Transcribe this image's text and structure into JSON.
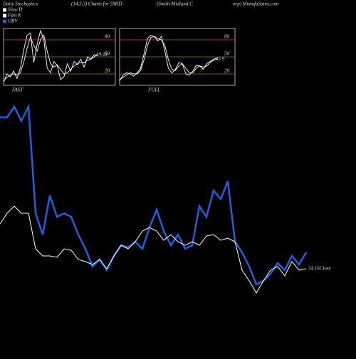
{
  "header": {
    "title_parts": [
      "Daily Stochastics",
      "(14,3,3) Charts for SMID",
      "(Smith-Midland C",
      "orp) MunafaSutra.com"
    ],
    "legend": [
      {
        "name": "Slow D",
        "color": "#ffffff"
      },
      {
        "name": "Fast K",
        "color": "#ffffff"
      },
      {
        "name": "OBV",
        "color": "#1f5fe0"
      }
    ]
  },
  "chart_data": [
    {
      "type": "line",
      "label": "FAST",
      "ylim": [
        0,
        100
      ],
      "yticks": [
        20,
        50,
        80
      ],
      "last_label": "49.49",
      "series": [
        {
          "name": "Fast K",
          "color": "#ffffff",
          "values": [
            5,
            20,
            15,
            25,
            12,
            30,
            62,
            88,
            92,
            40,
            72,
            96,
            80,
            30,
            22,
            42,
            35,
            10,
            15,
            38,
            25,
            42,
            36,
            46,
            32,
            50,
            46,
            54,
            52
          ]
        },
        {
          "name": "Slow D",
          "color": "#ffffff",
          "values": [
            8,
            14,
            18,
            20,
            18,
            22,
            40,
            65,
            85,
            70,
            60,
            80,
            88,
            60,
            38,
            32,
            36,
            28,
            20,
            22,
            28,
            34,
            38,
            40,
            40,
            44,
            46,
            50,
            54
          ]
        }
      ]
    },
    {
      "type": "line",
      "label": "FULL",
      "ylim": [
        0,
        100
      ],
      "yticks": [
        20,
        50,
        80
      ],
      "last_label": "45.9",
      "series": [
        {
          "name": "Fast K",
          "color": "#ffffff",
          "values": [
            8,
            18,
            22,
            20,
            16,
            22,
            30,
            55,
            82,
            88,
            85,
            78,
            86,
            60,
            30,
            22,
            28,
            40,
            38,
            20,
            18,
            25,
            35,
            34,
            28,
            38,
            42,
            46,
            48
          ]
        },
        {
          "name": "Slow D",
          "color": "#ffffff",
          "values": [
            10,
            14,
            18,
            22,
            20,
            20,
            26,
            45,
            70,
            84,
            86,
            82,
            80,
            70,
            45,
            28,
            26,
            34,
            38,
            30,
            22,
            22,
            30,
            34,
            32,
            34,
            40,
            44,
            46
          ]
        }
      ]
    },
    {
      "type": "line",
      "ylim": [
        0,
        280
      ],
      "close_label": "34.16Close",
      "series": [
        {
          "name": "OBV",
          "color": "#1f5fe0",
          "values": [
            255,
            255,
            270,
            250,
            270,
            120,
            90,
            145,
            115,
            120,
            115,
            90,
            70,
            45,
            55,
            40,
            60,
            75,
            72,
            80,
            70,
            100,
            125,
            95,
            75,
            90,
            70,
            75,
            130,
            115,
            152,
            140,
            165,
            80,
            65,
            45,
            20,
            25,
            35,
            50,
            40,
            60,
            48,
            65
          ]
        },
        {
          "name": "Close",
          "color": "#ffffff",
          "values": [
            105,
            120,
            130,
            120,
            120,
            70,
            60,
            60,
            58,
            70,
            68,
            55,
            52,
            48,
            55,
            42,
            60,
            75,
            70,
            80,
            95,
            100,
            95,
            82,
            90,
            80,
            75,
            80,
            75,
            88,
            90,
            82,
            85,
            80,
            40,
            25,
            8,
            25,
            40,
            45,
            32,
            52,
            40,
            42
          ]
        }
      ]
    }
  ]
}
